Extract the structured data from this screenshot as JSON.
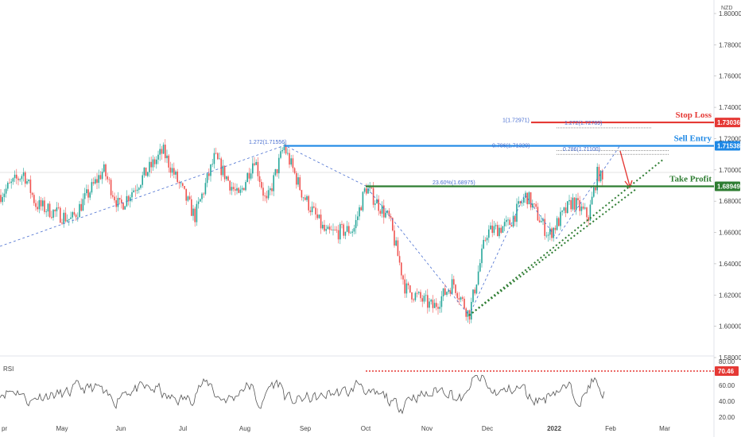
{
  "chart_data": {
    "type": "candlestick",
    "currency_label": "NZD",
    "x_tick_labels": [
      "pr",
      "May",
      "Jun",
      "Jul",
      "Aug",
      "Sep",
      "Oct",
      "Nov",
      "Dec",
      "2022",
      "Feb",
      "Mar"
    ],
    "y_tick_labels": [
      "1.80000",
      "1.78000",
      "1.76000",
      "1.74000",
      "1.72000",
      "1.70000",
      "1.68000",
      "1.66000",
      "1.64000",
      "1.62000",
      "1.60000",
      "1.58000"
    ],
    "y_ticks": [
      1.8,
      1.78,
      1.76,
      1.74,
      1.72,
      1.7,
      1.68,
      1.66,
      1.64,
      1.62,
      1.6,
      1.58
    ],
    "ylim": [
      1.58,
      1.81
    ],
    "price_path": [
      [
        "pr",
        1.684
      ],
      [
        "May",
        1.679
      ],
      [
        "Jun",
        1.698
      ],
      [
        "Jul",
        1.685
      ],
      [
        "Aug",
        1.7
      ],
      [
        "Sep",
        1.676
      ],
      [
        "Oct",
        1.678
      ],
      [
        "Nov",
        1.624
      ],
      [
        "Dec",
        1.665
      ],
      [
        "2022",
        1.679
      ],
      [
        "Feb",
        1.69
      ]
    ],
    "levels": [
      {
        "name": "Stop Loss",
        "value": 1.73036,
        "badge": "1.73036",
        "color": "#e53935"
      },
      {
        "name": "Sell Entry",
        "value": 1.71538,
        "badge": "1.71538",
        "color": "#1e88e5"
      },
      {
        "name": "Take Profit",
        "value": 1.68949,
        "badge": "1.68949",
        "color": "#2e7d32"
      }
    ],
    "fib_annotations": [
      {
        "text": "1(1.72971)",
        "value": 1.72971
      },
      {
        "text": "1.272(1.72789)",
        "value": 1.72789
      },
      {
        "text": "1.272(1.71556)",
        "value": 1.71556
      },
      {
        "text": "0.786(1.71329)",
        "value": 1.71329
      },
      {
        "text": "0.786(1.71100)",
        "value": 1.711
      },
      {
        "text": "23.60%(1.68975)",
        "value": 1.68975
      }
    ],
    "rsi": {
      "label": "RSI",
      "current": "70.46",
      "y_tick_labels": [
        "80.00",
        "60.00",
        "40.00",
        "20.00"
      ],
      "y_ticks": [
        80,
        60,
        40,
        20
      ],
      "ylim": [
        15,
        85
      ],
      "overbought_level": 70.46
    }
  }
}
